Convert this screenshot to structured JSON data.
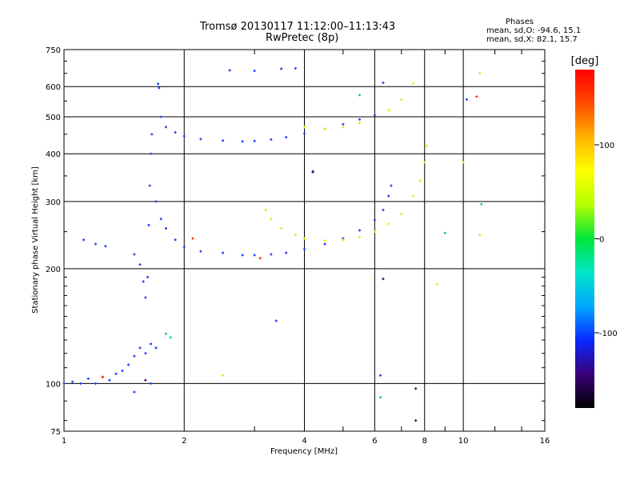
{
  "title_line1": "Tromsø 20130117 11:12:00–11:13:43",
  "title_line2": "RwPretec (8p)",
  "phase_box": {
    "heading": "Phases",
    "line1": "mean, sd,O:  -94.6, 15.1",
    "line2": "mean, sd,X:  82.1, 15.7"
  },
  "chart_data": {
    "type": "scatter",
    "xlabel": "Frequency [MHz]",
    "ylabel": "Stationary phase Virtual Height [km]",
    "x_scale": "log2",
    "y_scale": "log",
    "xlim": [
      1,
      16
    ],
    "ylim": [
      75,
      750
    ],
    "x_ticks": [
      1,
      2,
      4,
      6,
      8,
      10,
      16
    ],
    "y_ticks": [
      75,
      100,
      200,
      300,
      400,
      500,
      600,
      750
    ],
    "grid": true,
    "colorbar": {
      "label": "[deg]",
      "range": [
        -180,
        180
      ],
      "ticks": [
        100,
        0,
        -100
      ],
      "colors": [
        "#000000",
        "#3a0078",
        "#0a28ff",
        "#00a8ff",
        "#00e6c8",
        "#00e63c",
        "#b4ff00",
        "#ffff00",
        "#ffb400",
        "#ff4b00",
        "#ff0000"
      ]
    },
    "series": [
      {
        "ray": "O",
        "phase_deg": -94.6,
        "color": "#1a3cff",
        "points": [
          [
            1.0,
            100
          ],
          [
            1.05,
            101
          ],
          [
            1.1,
            100
          ],
          [
            1.15,
            103
          ],
          [
            1.2,
            100
          ],
          [
            1.25,
            104
          ],
          [
            1.3,
            102
          ],
          [
            1.35,
            106
          ],
          [
            1.4,
            108
          ],
          [
            1.45,
            112
          ],
          [
            1.5,
            118
          ],
          [
            1.55,
            124
          ],
          [
            1.6,
            120
          ],
          [
            1.65,
            127
          ],
          [
            1.7,
            124
          ],
          [
            1.12,
            238
          ],
          [
            1.2,
            232
          ],
          [
            1.27,
            229
          ],
          [
            1.5,
            218
          ],
          [
            1.55,
            205
          ],
          [
            1.58,
            185
          ],
          [
            1.6,
            168
          ],
          [
            1.62,
            190
          ],
          [
            1.63,
            260
          ],
          [
            1.64,
            330
          ],
          [
            1.65,
            400
          ],
          [
            1.66,
            450
          ],
          [
            1.7,
            300
          ],
          [
            1.75,
            270
          ],
          [
            1.8,
            255
          ],
          [
            1.9,
            238
          ],
          [
            2.0,
            228
          ],
          [
            2.2,
            222
          ],
          [
            2.5,
            220
          ],
          [
            2.8,
            217
          ],
          [
            3.0,
            217
          ],
          [
            3.3,
            218
          ],
          [
            3.6,
            220
          ],
          [
            4.0,
            225
          ],
          [
            4.5,
            232
          ],
          [
            5.0,
            240
          ],
          [
            5.5,
            252
          ],
          [
            6.0,
            268
          ],
          [
            6.3,
            285
          ],
          [
            6.5,
            310
          ],
          [
            6.6,
            330
          ],
          [
            1.75,
            500
          ],
          [
            1.8,
            470
          ],
          [
            1.9,
            455
          ],
          [
            2.0,
            445
          ],
          [
            2.2,
            437
          ],
          [
            2.5,
            433
          ],
          [
            2.8,
            431
          ],
          [
            3.0,
            432
          ],
          [
            3.3,
            436
          ],
          [
            3.6,
            442
          ],
          [
            4.0,
            452
          ],
          [
            4.5,
            465
          ],
          [
            5.0,
            478
          ],
          [
            5.5,
            492
          ],
          [
            6.0,
            505
          ],
          [
            1.72,
            610
          ],
          [
            1.73,
            595
          ],
          [
            2.6,
            662
          ],
          [
            3.0,
            660
          ],
          [
            3.5,
            668
          ],
          [
            3.8,
            670
          ],
          [
            6.3,
            614
          ],
          [
            10.2,
            555
          ],
          [
            4.2,
            360
          ],
          [
            3.4,
            146
          ],
          [
            6.2,
            105
          ],
          [
            1.65,
            100
          ],
          [
            1.5,
            95
          ]
        ]
      },
      {
        "ray": "X",
        "phase_deg": 82.1,
        "color": "#d7f000",
        "points": [
          [
            3.2,
            285
          ],
          [
            3.3,
            270
          ],
          [
            3.5,
            255
          ],
          [
            3.8,
            245
          ],
          [
            4.0,
            240
          ],
          [
            4.5,
            237
          ],
          [
            5.0,
            238
          ],
          [
            5.5,
            242
          ],
          [
            6.0,
            250
          ],
          [
            6.5,
            262
          ],
          [
            7.0,
            278
          ],
          [
            7.5,
            310
          ],
          [
            7.8,
            340
          ],
          [
            8.0,
            380
          ],
          [
            8.1,
            420
          ],
          [
            4.0,
            470
          ],
          [
            4.5,
            465
          ],
          [
            5.0,
            470
          ],
          [
            5.5,
            482
          ],
          [
            6.5,
            520
          ],
          [
            7.0,
            555
          ],
          [
            7.5,
            612
          ],
          [
            11.0,
            650
          ],
          [
            10.0,
            380
          ],
          [
            8.6,
            182
          ],
          [
            2.5,
            105
          ],
          [
            11.0,
            245
          ]
        ]
      },
      {
        "ray": "other",
        "phase_deg": 0,
        "color": "#00c8a0",
        "points": [
          [
            1.8,
            135
          ],
          [
            1.85,
            132
          ],
          [
            6.2,
            92
          ],
          [
            9.0,
            248
          ],
          [
            5.5,
            570
          ],
          [
            11.1,
            295
          ]
        ]
      },
      {
        "ray": "other",
        "phase_deg": -170,
        "color": "#4a006e",
        "points": [
          [
            7.6,
            97
          ],
          [
            7.6,
            80
          ],
          [
            4.2,
            358
          ],
          [
            6.3,
            188
          ],
          [
            1.6,
            102
          ]
        ]
      },
      {
        "ray": "other",
        "phase_deg": 160,
        "color": "#ff3000",
        "points": [
          [
            3.1,
            213
          ],
          [
            1.25,
            104
          ],
          [
            10.8,
            565
          ],
          [
            2.1,
            240
          ]
        ]
      }
    ]
  }
}
